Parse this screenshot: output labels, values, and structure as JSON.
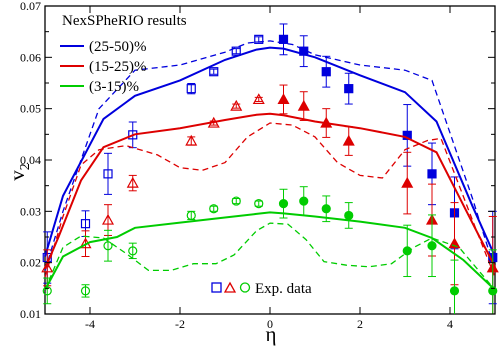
{
  "chart_data": {
    "type": "line",
    "xlabel": "η",
    "ylabel": "v",
    "ylabel_sub": "2",
    "xlim": [
      -5,
      5
    ],
    "ylim": [
      0.01,
      0.07
    ],
    "xticks": [
      -4,
      -2,
      0,
      2,
      4
    ],
    "xtick_labels": [
      "-4",
      "-2",
      "0",
      "2",
      "4"
    ],
    "yticks": [
      0.01,
      0.02,
      0.03,
      0.04,
      0.05,
      0.06,
      0.07
    ],
    "ytick_labels": [
      "0.01",
      "0.02",
      "0.03",
      "0.04",
      "0.05",
      "0.06",
      "0.07"
    ],
    "grid": false,
    "legend_placement": "top-left",
    "legend_title": "NexSPheRIO results",
    "exp_legend_label": "Exp. data",
    "colors": {
      "blue": "#0000dd",
      "red": "#dd0000",
      "green": "#00cc00"
    },
    "series": [
      {
        "name": "(25-50)%",
        "color": "#0000dd",
        "solid": {
          "x": [
            -5.0,
            -4.6,
            -3.7,
            -3.0,
            -2.0,
            -1.0,
            -0.3,
            0.0,
            0.3,
            1.0,
            2.0,
            3.0,
            3.7,
            4.5,
            5.0
          ],
          "y": [
            0.0212,
            0.033,
            0.048,
            0.0525,
            0.0555,
            0.0595,
            0.0615,
            0.0619,
            0.0617,
            0.06,
            0.0565,
            0.0532,
            0.0475,
            0.031,
            0.0212
          ]
        },
        "dashed": {
          "x": [
            -5.0,
            -4.6,
            -3.8,
            -3.0,
            -2.0,
            -1.0,
            -0.5,
            0.0,
            0.5,
            1.0,
            2.0,
            3.0,
            3.6,
            4.5,
            5.0
          ],
          "y": [
            0.0185,
            0.03,
            0.05,
            0.0575,
            0.0585,
            0.061,
            0.0628,
            0.0632,
            0.0625,
            0.0605,
            0.0585,
            0.0575,
            0.0555,
            0.0325,
            0.0185
          ]
        },
        "points_filled": {
          "x": [
            0.3,
            0.75,
            1.25,
            1.75,
            3.05,
            3.6,
            4.1,
            4.95
          ],
          "y": [
            0.0635,
            0.0612,
            0.0572,
            0.0539,
            0.0448,
            0.0373,
            0.0297,
            0.021
          ],
          "err": [
            0.003,
            0.003,
            0.003,
            0.003,
            0.006,
            0.006,
            0.007,
            0.009
          ]
        },
        "points_open": {
          "x": [
            -4.95,
            -4.1,
            -3.6,
            -3.05,
            -1.75,
            -1.25,
            -0.75,
            -0.25
          ],
          "y": [
            0.021,
            0.0276,
            0.0373,
            0.0449,
            0.0539,
            0.0572,
            0.0612,
            0.0635
          ],
          "err": [
            0.005,
            0.0025,
            0.004,
            0.0025,
            0.001,
            0.0005,
            0.0005,
            0.0005
          ]
        }
      },
      {
        "name": "(15-25)%",
        "color": "#dd0000",
        "solid": {
          "x": [
            -5.0,
            -4.7,
            -4.2,
            -3.7,
            -3.0,
            -2.0,
            -1.0,
            -0.3,
            0.0,
            0.3,
            1.0,
            2.0,
            3.0,
            3.7,
            4.6,
            5.0
          ],
          "y": [
            0.0188,
            0.025,
            0.036,
            0.0425,
            0.045,
            0.0462,
            0.0478,
            0.0488,
            0.049,
            0.0487,
            0.0475,
            0.0462,
            0.0445,
            0.0415,
            0.026,
            0.0192
          ]
        },
        "dashed": {
          "x": [
            -5.0,
            -4.6,
            -4.2,
            -3.8,
            -3.2,
            -2.5,
            -2.0,
            -1.5,
            -1.0,
            -0.5,
            0.0,
            0.5,
            1.0,
            1.5,
            2.0,
            2.5,
            3.0,
            3.5,
            3.8,
            4.6,
            5.0
          ],
          "y": [
            0.0172,
            0.029,
            0.039,
            0.042,
            0.0428,
            0.041,
            0.0385,
            0.038,
            0.0395,
            0.0445,
            0.0472,
            0.0468,
            0.0445,
            0.0395,
            0.037,
            0.0365,
            0.042,
            0.0438,
            0.0442,
            0.026,
            0.0172
          ]
        },
        "points_filled": {
          "x": [
            0.3,
            0.75,
            1.25,
            1.75,
            3.05,
            3.6,
            4.1,
            4.95
          ],
          "y": [
            0.0518,
            0.0505,
            0.0472,
            0.0437,
            0.0355,
            0.0283,
            0.0237,
            0.019
          ],
          "err": [
            0.0028,
            0.0028,
            0.0028,
            0.0028,
            0.006,
            0.007,
            0.008,
            0.01
          ]
        },
        "points_open": {
          "x": [
            -4.95,
            -4.1,
            -3.6,
            -3.05,
            -1.75,
            -1.25,
            -0.75,
            -0.25
          ],
          "y": [
            0.019,
            0.0237,
            0.0283,
            0.0355,
            0.0437,
            0.0472,
            0.0505,
            0.0518
          ],
          "err": [
            0.0035,
            0.0025,
            0.003,
            0.0015,
            0.0008,
            0.0004,
            0.0004,
            0.0004
          ]
        }
      },
      {
        "name": "(3-15)%",
        "color": "#00cc00",
        "solid": {
          "x": [
            -5.0,
            -4.6,
            -4.0,
            -3.4,
            -3.0,
            -2.0,
            -1.0,
            -0.3,
            0.0,
            0.3,
            1.0,
            2.0,
            3.0,
            3.6,
            4.3,
            5.0
          ],
          "y": [
            0.0147,
            0.0212,
            0.024,
            0.025,
            0.0268,
            0.0278,
            0.0288,
            0.0295,
            0.0298,
            0.0296,
            0.029,
            0.028,
            0.0268,
            0.0248,
            0.0205,
            0.0147
          ]
        },
        "dashed": {
          "x": [
            -5.0,
            -4.6,
            -4.2,
            -3.7,
            -3.2,
            -2.7,
            -2.2,
            -1.7,
            -1.2,
            -0.8,
            -0.3,
            0.0,
            0.4,
            0.8,
            1.2,
            1.7,
            2.2,
            2.7,
            3.2,
            3.6,
            4.2,
            5.0
          ],
          "y": [
            0.0147,
            0.023,
            0.0252,
            0.0248,
            0.0218,
            0.0185,
            0.0185,
            0.0198,
            0.0198,
            0.0215,
            0.0262,
            0.0277,
            0.0275,
            0.0245,
            0.0202,
            0.0195,
            0.0192,
            0.0198,
            0.023,
            0.0248,
            0.023,
            0.0147
          ]
        },
        "points_filled": {
          "x": [
            0.3,
            0.75,
            1.25,
            1.75,
            3.05,
            3.6,
            4.1,
            4.95
          ],
          "y": [
            0.0315,
            0.032,
            0.0305,
            0.0292,
            0.0223,
            0.0233,
            0.0145,
            0.0145
          ],
          "err": [
            0.0028,
            0.0028,
            0.0025,
            0.0025,
            0.005,
            0.006,
            0.006,
            0.008
          ]
        },
        "points_open": {
          "x": [
            -4.95,
            -4.1,
            -3.6,
            -3.05,
            -1.75,
            -1.25,
            -0.75,
            -0.25
          ],
          "y": [
            0.0145,
            0.0145,
            0.0233,
            0.0223,
            0.0292,
            0.0305,
            0.032,
            0.0315
          ],
          "err": [
            0.0025,
            0.0012,
            0.003,
            0.0015,
            0.0008,
            0.0005,
            0.0005,
            0.0005
          ]
        }
      }
    ]
  }
}
